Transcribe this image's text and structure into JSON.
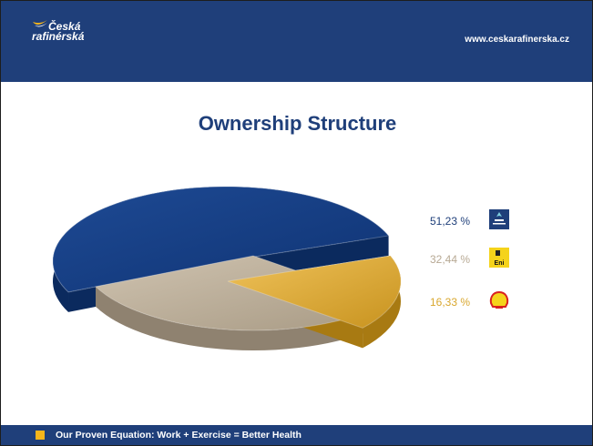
{
  "header": {
    "logo_line1": "Česká",
    "logo_line2": "rafinérská",
    "url": "www.ceskarafinerska.cz"
  },
  "slide": {
    "title": "Ownership Structure"
  },
  "footer": {
    "text": "Our Proven Equation: Work + Exercise = Better Health"
  },
  "colors": {
    "header_bg": "#1f3f7a",
    "accent": "#f5b51b",
    "slice_blue": "#163f86",
    "slice_gray": "#b7a994",
    "slice_gold": "#d9a72e"
  },
  "chart_data": {
    "type": "pie",
    "title": "Ownership Structure",
    "values": [
      51.23,
      32.44,
      16.33
    ],
    "labels": [
      "51,23 %",
      "32,44 %",
      "16,33 %"
    ],
    "legend": [
      {
        "label": "51,23 %",
        "icon": "unipetrol-logo-icon",
        "color": "#1f3f7a"
      },
      {
        "label": "32,44 %",
        "icon": "eni-logo-icon",
        "color": "#b7a994"
      },
      {
        "label": "16,33 %",
        "icon": "shell-logo-icon",
        "color": "#d9a72e"
      }
    ],
    "legend_position": "right"
  }
}
